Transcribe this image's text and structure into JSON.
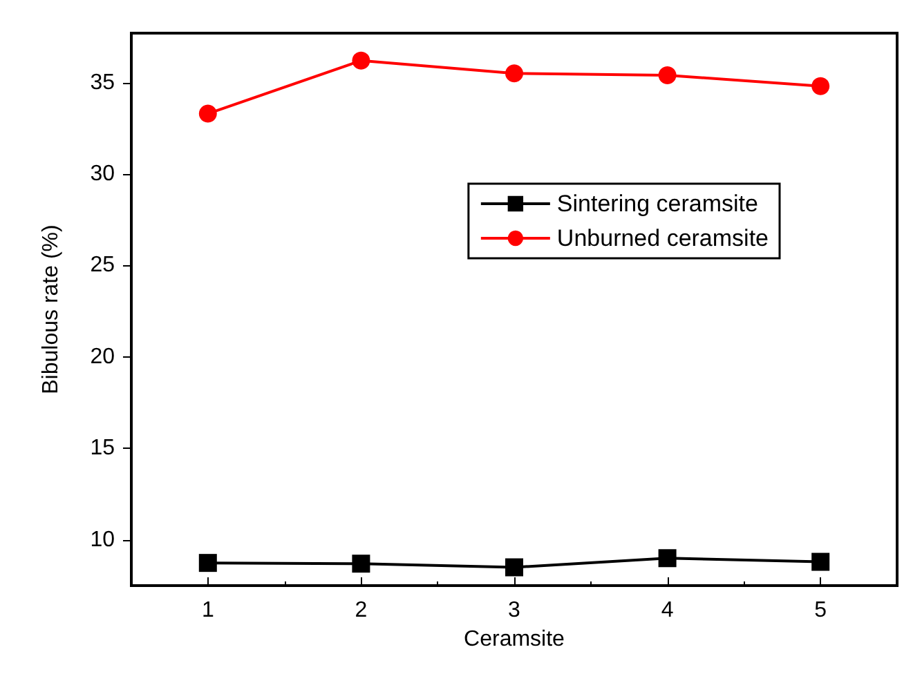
{
  "chart_data": {
    "type": "line",
    "xlabel": "Ceramsite",
    "ylabel": "Bibulous rate (%)",
    "x": [
      1,
      2,
      3,
      4,
      5
    ],
    "series": [
      {
        "name": "Sintering ceramsite",
        "color": "#000000",
        "marker": "square",
        "values": [
          8.74,
          8.7,
          8.5,
          9.0,
          8.8
        ]
      },
      {
        "name": "Unburned ceramsite",
        "color": "#ff0000",
        "marker": "circle",
        "values": [
          33.3,
          36.2,
          35.5,
          35.4,
          34.8
        ]
      }
    ],
    "xlim": [
      0.5,
      5.5
    ],
    "xticks": [
      1,
      2,
      3,
      4,
      5
    ],
    "ylim": [
      7.5,
      37.7
    ],
    "yticks": [
      10,
      15,
      20,
      25,
      30,
      35
    ],
    "grid": false,
    "legend": "top right",
    "line_style": "solid"
  }
}
